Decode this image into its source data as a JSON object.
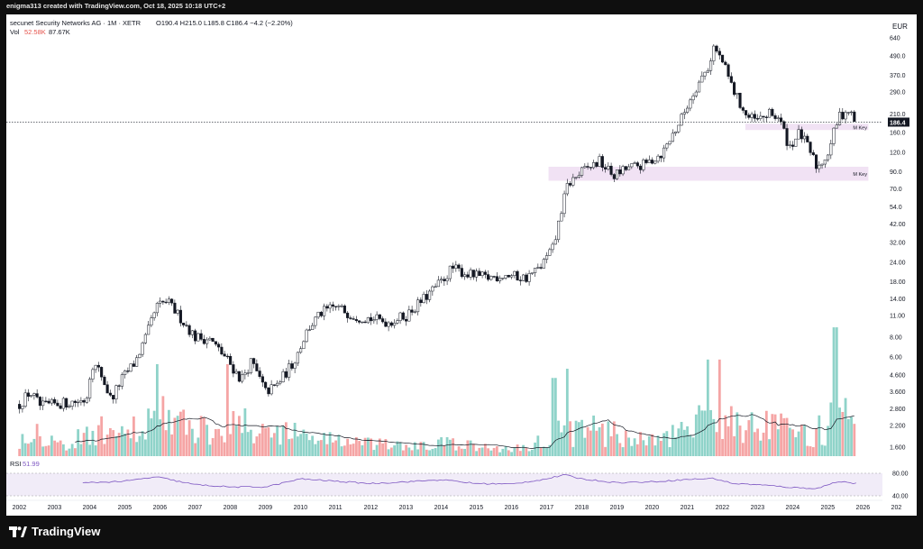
{
  "header": {
    "caption": "enigma313 created with TradingView.com, Oct 18, 2025 10:18 UTC+2"
  },
  "legend": {
    "symbol": "secunet Security Networks AG · 1M · XETR",
    "ohlc": "O190.4 H215.0 L185.8 C186.4 −4.2 (−2.20%)",
    "vol_label": "Vol",
    "vol_value_1": "52.58K",
    "vol_value_2": "87.67K",
    "rsi_label": "RSI",
    "rsi_value": "51.99"
  },
  "footer": {
    "brand": "TradingView"
  },
  "chart_data": {
    "type": "candlestick",
    "scale": "log",
    "currency": "EUR",
    "interval": "1M",
    "last_price": "186.4",
    "y_ticks": [
      "640",
      "490.0",
      "370.0",
      "290.0",
      "210.0",
      "160.0",
      "120.0",
      "90.0",
      "70.0",
      "54.0",
      "42.00",
      "32.00",
      "24.00",
      "18.00",
      "14.00",
      "11.00",
      "8.00",
      "6.00",
      "4.600",
      "3.600",
      "2.800",
      "2.200",
      "1.600"
    ],
    "x_ticks": [
      "2002",
      "2003",
      "2004",
      "2005",
      "2006",
      "2007",
      "2008",
      "2009",
      "2010",
      "2011",
      "2012",
      "2013",
      "2014",
      "2015",
      "2016",
      "2017",
      "2018",
      "2019",
      "2020",
      "2021",
      "2022",
      "2023",
      "2024",
      "2025",
      "2026",
      "202"
    ],
    "zones": [
      {
        "label": "M Key",
        "from": 2022.65,
        "to": 2026.15,
        "low": 166,
        "high": 182
      },
      {
        "label": "M Key",
        "from": 2017.05,
        "to": 2026.15,
        "low": 79,
        "high": 97
      }
    ],
    "price_path": [
      [
        2002.0,
        3.0
      ],
      [
        2002.3,
        3.6
      ],
      [
        2002.6,
        2.9
      ],
      [
        2003.0,
        3.0
      ],
      [
        2003.5,
        3.1
      ],
      [
        2003.9,
        3.2
      ],
      [
        2004.05,
        5.5
      ],
      [
        2004.3,
        4.8
      ],
      [
        2004.6,
        3.2
      ],
      [
        2004.9,
        4.3
      ],
      [
        2005.3,
        5.6
      ],
      [
        2005.6,
        8.0
      ],
      [
        2005.9,
        12.5
      ],
      [
        2006.2,
        13.5
      ],
      [
        2006.6,
        10.5
      ],
      [
        2007.0,
        8.0
      ],
      [
        2007.4,
        7.8
      ],
      [
        2007.9,
        5.8
      ],
      [
        2008.3,
        4.3
      ],
      [
        2008.6,
        5.6
      ],
      [
        2009.0,
        3.6
      ],
      [
        2009.3,
        3.9
      ],
      [
        2009.8,
        5.6
      ],
      [
        2010.2,
        9.0
      ],
      [
        2010.6,
        11.5
      ],
      [
        2011.0,
        12.5
      ],
      [
        2011.5,
        11.0
      ],
      [
        2012.0,
        10.5
      ],
      [
        2012.5,
        10.0
      ],
      [
        2013.0,
        11.0
      ],
      [
        2013.5,
        14.0
      ],
      [
        2014.0,
        18.0
      ],
      [
        2014.3,
        22.0
      ],
      [
        2014.8,
        20.0
      ],
      [
        2015.3,
        19.0
      ],
      [
        2015.8,
        20.0
      ],
      [
        2016.4,
        19.0
      ],
      [
        2016.8,
        22.0
      ],
      [
        2017.2,
        30.0
      ],
      [
        2017.4,
        50.0
      ],
      [
        2017.6,
        75.0
      ],
      [
        2018.0,
        90.0
      ],
      [
        2018.5,
        105.0
      ],
      [
        2018.9,
        85.0
      ],
      [
        2019.3,
        95.0
      ],
      [
        2019.8,
        100.0
      ],
      [
        2020.3,
        120.0
      ],
      [
        2020.8,
        190.0
      ],
      [
        2021.2,
        300.0
      ],
      [
        2021.6,
        420.0
      ],
      [
        2021.75,
        560.0
      ],
      [
        2022.0,
        450.0
      ],
      [
        2022.3,
        300.0
      ],
      [
        2022.7,
        200.0
      ],
      [
        2023.0,
        190.0
      ],
      [
        2023.3,
        210.0
      ],
      [
        2023.6,
        200.0
      ],
      [
        2023.9,
        130.0
      ],
      [
        2024.2,
        160.0
      ],
      [
        2024.5,
        120.0
      ],
      [
        2024.7,
        95.0
      ],
      [
        2025.0,
        120.0
      ],
      [
        2025.3,
        200.0
      ],
      [
        2025.55,
        225.0
      ],
      [
        2025.8,
        186.4
      ]
    ],
    "volume_path": [
      [
        2002.0,
        0.2
      ],
      [
        2002.5,
        0.3
      ],
      [
        2003.0,
        0.15
      ],
      [
        2003.5,
        0.12
      ],
      [
        2004.0,
        0.3
      ],
      [
        2004.5,
        0.25
      ],
      [
        2005.0,
        0.2
      ],
      [
        2005.5,
        0.35
      ],
      [
        2006.0,
        0.45
      ],
      [
        2006.5,
        0.35
      ],
      [
        2007.0,
        0.3
      ],
      [
        2007.5,
        0.3
      ],
      [
        2008.0,
        0.4
      ],
      [
        2008.5,
        0.3
      ],
      [
        2009.0,
        0.25
      ],
      [
        2009.5,
        0.3
      ],
      [
        2010.0,
        0.22
      ],
      [
        2010.5,
        0.2
      ],
      [
        2011.0,
        0.18
      ],
      [
        2011.5,
        0.15
      ],
      [
        2012.0,
        0.12
      ],
      [
        2012.5,
        0.12
      ],
      [
        2013.0,
        0.1
      ],
      [
        2013.5,
        0.1
      ],
      [
        2014.0,
        0.14
      ],
      [
        2014.5,
        0.12
      ],
      [
        2015.0,
        0.1
      ],
      [
        2015.5,
        0.08
      ],
      [
        2016.0,
        0.08
      ],
      [
        2016.5,
        0.1
      ],
      [
        2017.0,
        0.2
      ],
      [
        2017.5,
        0.3
      ],
      [
        2018.0,
        0.25
      ],
      [
        2018.5,
        0.3
      ],
      [
        2019.0,
        0.22
      ],
      [
        2019.5,
        0.2
      ],
      [
        2020.0,
        0.15
      ],
      [
        2020.5,
        0.2
      ],
      [
        2021.0,
        0.25
      ],
      [
        2021.5,
        0.4
      ],
      [
        2022.0,
        0.45
      ],
      [
        2022.5,
        0.35
      ],
      [
        2023.0,
        0.3
      ],
      [
        2023.5,
        0.3
      ],
      [
        2024.0,
        0.25
      ],
      [
        2024.5,
        0.2
      ],
      [
        2025.0,
        0.35
      ],
      [
        2025.5,
        0.4
      ],
      [
        2025.8,
        0.2
      ]
    ],
    "rsi_levels": [
      "80.00",
      "40.00"
    ],
    "rsi_path": [
      [
        2002.0,
        50
      ],
      [
        2003.0,
        47
      ],
      [
        2004.0,
        55
      ],
      [
        2005.0,
        60
      ],
      [
        2005.9,
        75
      ],
      [
        2006.5,
        60
      ],
      [
        2007.0,
        48
      ],
      [
        2008.0,
        40
      ],
      [
        2009.0,
        40
      ],
      [
        2010.0,
        68
      ],
      [
        2011.0,
        60
      ],
      [
        2012.0,
        52
      ],
      [
        2013.0,
        58
      ],
      [
        2014.0,
        65
      ],
      [
        2015.0,
        52
      ],
      [
        2016.0,
        50
      ],
      [
        2017.0,
        68
      ],
      [
        2017.5,
        82
      ],
      [
        2018.0,
        68
      ],
      [
        2019.0,
        55
      ],
      [
        2020.0,
        58
      ],
      [
        2021.0,
        66
      ],
      [
        2021.75,
        70
      ],
      [
        2022.3,
        52
      ],
      [
        2023.0,
        48
      ],
      [
        2024.0,
        38
      ],
      [
        2024.7,
        35
      ],
      [
        2025.3,
        60
      ],
      [
        2025.8,
        51.99
      ]
    ]
  }
}
